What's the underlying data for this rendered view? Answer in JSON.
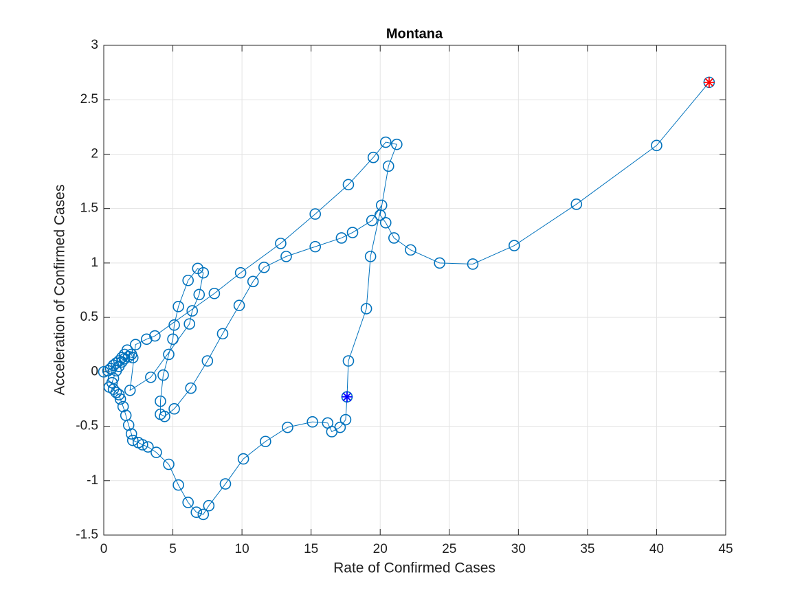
{
  "chart_data": {
    "type": "scatter",
    "title": "Montana",
    "x_label": "Rate of Confirmed Cases",
    "y_label": "Acceleration of Confirmed Cases",
    "xlim": [
      0,
      45
    ],
    "ylim": [
      -1.5,
      3
    ],
    "xticks": [
      0,
      5,
      10,
      15,
      20,
      25,
      30,
      35,
      40,
      45
    ],
    "yticks": [
      -1.5,
      -1,
      -0.5,
      0,
      0.5,
      1,
      1.5,
      2,
      2.5,
      3
    ],
    "grid": true,
    "series": [
      {
        "color": "#0072bd",
        "x": [
          0,
          0.3,
          0.5,
          0.7,
          0.9,
          1.1,
          1.3,
          1.5,
          1.7,
          2.0,
          2.1,
          1.8,
          1.5,
          1.3,
          1.1,
          0.9,
          0.7,
          0.6,
          0.4,
          0.7,
          0.9,
          1.1,
          1.2,
          1.4,
          1.6,
          1.8,
          2.0,
          2.1,
          2.5,
          2.8,
          3.2,
          3.8,
          4.7,
          5.4,
          6.1,
          6.7,
          7.2,
          7.6,
          8.8,
          10.1,
          11.7,
          13.3,
          15.1,
          16.2,
          16.5,
          17.1,
          17.5,
          17.6,
          17.7,
          19.0,
          19.3,
          20.1,
          19.4,
          18.0,
          17.2,
          15.3,
          13.2,
          11.6,
          10.8,
          9.8,
          8.6,
          7.5,
          6.3,
          5.1,
          4.4,
          4.1,
          4.1,
          4.3,
          4.7,
          5.0,
          5.1,
          5.4,
          6.1,
          6.8,
          7.2,
          6.9,
          6.4,
          6.2,
          3.4,
          1.9,
          2.3,
          3.1,
          3.7,
          8.0,
          9.9,
          12.8,
          15.3,
          17.7,
          19.5,
          20.4,
          21.2,
          20.6,
          20.0,
          20.4,
          21.0,
          22.2,
          24.3,
          26.7,
          29.7,
          34.2,
          40.0,
          43.8
        ],
        "values": [
          0,
          0.01,
          0.03,
          0.06,
          0.08,
          0.1,
          0.13,
          0.16,
          0.2,
          0.16,
          0.13,
          0.14,
          0.12,
          0.09,
          0.05,
          0.01,
          -0.06,
          -0.1,
          -0.14,
          -0.16,
          -0.19,
          -0.21,
          -0.25,
          -0.32,
          -0.4,
          -0.49,
          -0.57,
          -0.63,
          -0.65,
          -0.67,
          -0.69,
          -0.74,
          -0.85,
          -1.04,
          -1.2,
          -1.29,
          -1.31,
          -1.23,
          -1.03,
          -0.8,
          -0.64,
          -0.51,
          -0.46,
          -0.47,
          -0.55,
          -0.51,
          -0.44,
          -0.23,
          0.1,
          0.58,
          1.06,
          1.53,
          1.39,
          1.28,
          1.23,
          1.15,
          1.06,
          0.96,
          0.83,
          0.61,
          0.35,
          0.1,
          -0.15,
          -0.34,
          -0.41,
          -0.39,
          -0.27,
          -0.03,
          0.16,
          0.3,
          0.43,
          0.6,
          0.84,
          0.95,
          0.91,
          0.71,
          0.56,
          0.44,
          -0.05,
          -0.17,
          0.25,
          0.3,
          0.33,
          0.72,
          0.91,
          1.18,
          1.45,
          1.72,
          1.97,
          2.11,
          2.09,
          1.89,
          1.44,
          1.37,
          1.23,
          1.12,
          1.0,
          0.99,
          1.16,
          1.54,
          2.08,
          2.66
        ]
      }
    ],
    "highlights": [
      {
        "x": 17.6,
        "y": -0.23,
        "color": "#0000ff"
      },
      {
        "x": 43.8,
        "y": 2.66,
        "color": "#ff0000"
      }
    ]
  }
}
